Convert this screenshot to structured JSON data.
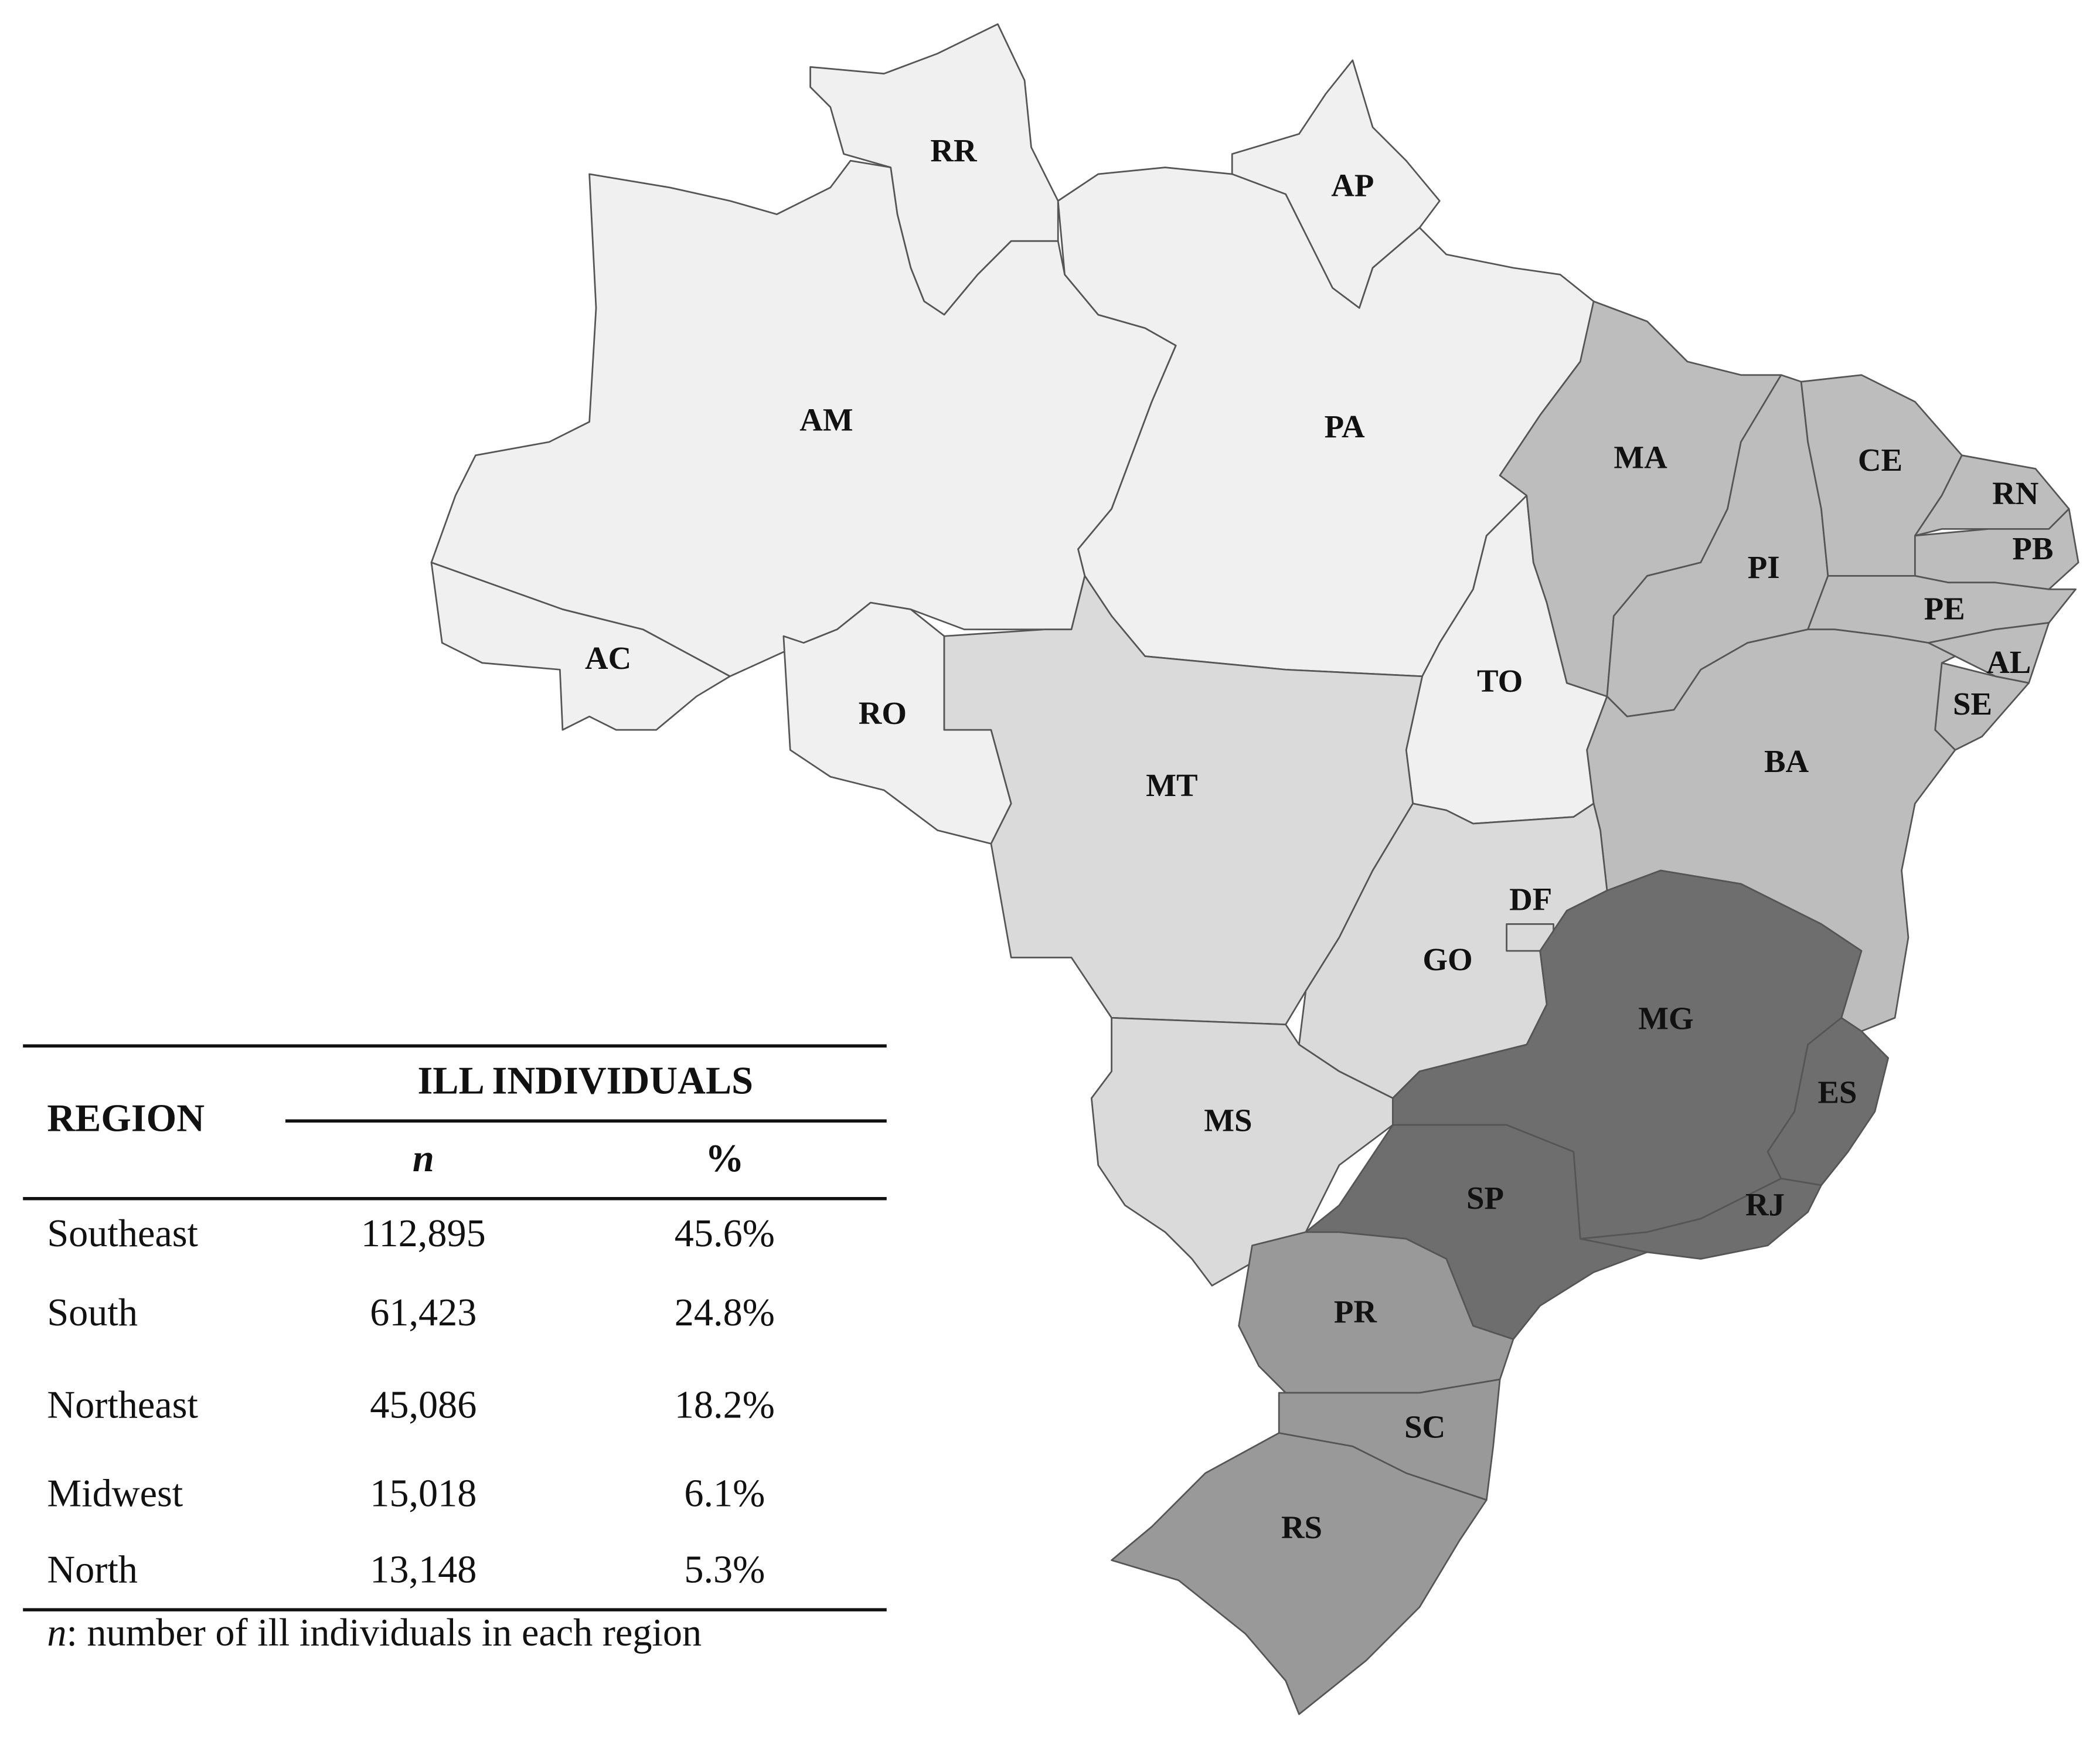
{
  "map": {
    "states": [
      {
        "label": "RR",
        "color": "#f0f0f0"
      },
      {
        "label": "AP",
        "color": "#f0f0f0"
      },
      {
        "label": "AM",
        "color": "#f0f0f0"
      },
      {
        "label": "AC",
        "color": "#f0f0f0"
      },
      {
        "label": "PA",
        "color": "#f0f0f0"
      },
      {
        "label": "RO",
        "color": "#f0f0f0"
      },
      {
        "label": "TO",
        "color": "#f0f0f0"
      },
      {
        "label": "MA",
        "color": "#bdbdbd"
      },
      {
        "label": "PI",
        "color": "#bdbdbd"
      },
      {
        "label": "CE",
        "color": "#bdbdbd"
      },
      {
        "label": "RN",
        "color": "#bdbdbd"
      },
      {
        "label": "PB",
        "color": "#bdbdbd"
      },
      {
        "label": "PE",
        "color": "#bdbdbd"
      },
      {
        "label": "AL",
        "color": "#bdbdbd"
      },
      {
        "label": "SE",
        "color": "#bdbdbd"
      },
      {
        "label": "BA",
        "color": "#bdbdbd"
      },
      {
        "label": "MT",
        "color": "#dadada"
      },
      {
        "label": "GO",
        "color": "#dadada"
      },
      {
        "label": "DF",
        "color": "#dadada"
      },
      {
        "label": "MS",
        "color": "#dadada"
      },
      {
        "label": "MG",
        "color": "#6e6e6e"
      },
      {
        "label": "ES",
        "color": "#6e6e6e"
      },
      {
        "label": "RJ",
        "color": "#6e6e6e"
      },
      {
        "label": "SP",
        "color": "#6e6e6e"
      },
      {
        "label": "PR",
        "color": "#999999"
      },
      {
        "label": "SC",
        "color": "#999999"
      },
      {
        "label": "RS",
        "color": "#999999"
      }
    ]
  },
  "table": {
    "header": {
      "region": "REGION",
      "group": "ILL INDIVIDUALS",
      "n": "n",
      "pct": "%"
    },
    "rows": [
      [
        "Southeast",
        "112,895",
        "45.6%"
      ],
      [
        "South",
        "61,423",
        "24.8%"
      ],
      [
        "Northeast",
        "45,086",
        "18.2%"
      ],
      [
        "Midwest",
        "15,018",
        "6.1%"
      ],
      [
        "North",
        "13,148",
        "5.3%"
      ]
    ],
    "note": {
      "italic": "n",
      "text": ": number of ill individuals in each region"
    }
  }
}
